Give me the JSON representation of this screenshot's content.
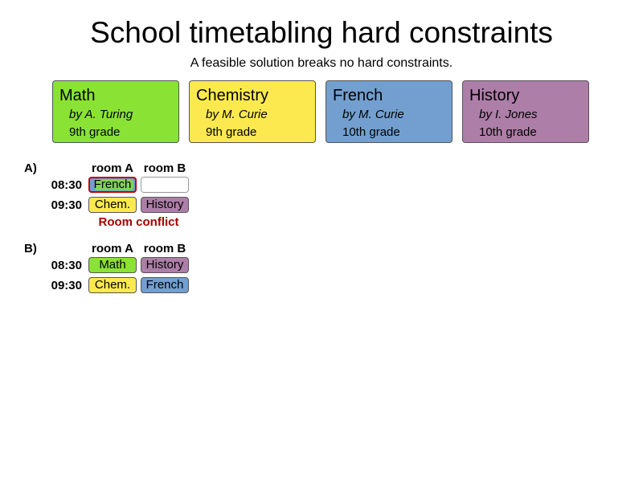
{
  "title": "School timetabling hard constraints",
  "subtitle": "A feasible solution breaks no hard constraints.",
  "colors": {
    "math": "#8ae234",
    "chemistry": "#fce94f",
    "french": "#729fcf",
    "history": "#ad7fa8",
    "conflict": "#c00000"
  },
  "lessons": [
    {
      "name": "Math",
      "teacher": "by  A. Turing",
      "grade": "9th grade"
    },
    {
      "name": "Chemistry",
      "teacher": "by  M. Curie",
      "grade": "9th grade"
    },
    {
      "name": "French",
      "teacher": "by  M. Curie",
      "grade": "10th grade"
    },
    {
      "name": "History",
      "teacher": "by  I. Jones",
      "grade": "10th grade"
    }
  ],
  "scenarios": [
    {
      "label": "A)",
      "rooms": [
        "room A",
        "room B"
      ],
      "times": [
        "08:30",
        "09:30"
      ],
      "slots": [
        [
          "French",
          ""
        ],
        [
          "Chem.",
          "History"
        ]
      ],
      "conflict_label": "Room conflict"
    },
    {
      "label": "B)",
      "rooms": [
        "room A",
        "room B"
      ],
      "times": [
        "08:30",
        "09:30"
      ],
      "slots": [
        [
          "Math",
          "History"
        ],
        [
          "Chem.",
          "French"
        ]
      ]
    }
  ]
}
